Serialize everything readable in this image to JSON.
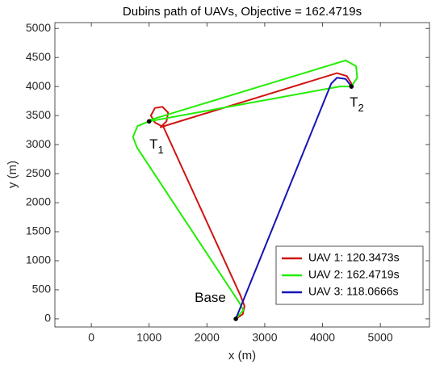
{
  "chart_data": {
    "type": "line",
    "title": "Dubins path of UAVs, Objective = 162.4719s",
    "xlabel": "x (m)",
    "ylabel": "y (m)",
    "xlim": [
      -630,
      5850
    ],
    "ylim": [
      -140,
      5100
    ],
    "xticks": [
      0,
      1000,
      2000,
      3000,
      4000,
      5000
    ],
    "yticks": [
      0,
      500,
      1000,
      1500,
      2000,
      2500,
      3000,
      3500,
      4000,
      4500,
      5000
    ],
    "legend": "lower right",
    "series": [
      {
        "name": "UAV 1: 120.3473s",
        "color": "#d0140e",
        "x": [
          2500,
          2620,
          2650,
          2580,
          1250,
          1100,
          1030,
          1100,
          1230,
          1330,
          1300,
          1200,
          4250,
          4420,
          4500,
          4500
        ],
        "values": [
          0,
          80,
          220,
          400,
          3300,
          3380,
          3500,
          3630,
          3650,
          3550,
          3400,
          3300,
          4230,
          4180,
          4050,
          4000
        ]
      },
      {
        "name": "UAV 2: 162.4719s",
        "color": "#22ee00",
        "x": [
          2500,
          2630,
          2560,
          790,
          720,
          800,
          1000,
          4300,
          4500,
          4600,
          4580,
          4400,
          1000
        ],
        "values": [
          0,
          150,
          280,
          2950,
          3130,
          3320,
          3400,
          4000,
          4000,
          4150,
          4350,
          4450,
          3420
        ]
      },
      {
        "name": "UAV 3: 118.0666s",
        "color": "#1414b4",
        "x": [
          2500,
          4150,
          4250,
          4400,
          4500
        ],
        "values": [
          0,
          4050,
          4150,
          4130,
          4000
        ]
      }
    ],
    "points": {
      "color": "#000000",
      "x": [
        2500,
        1000,
        4500
      ],
      "values": [
        0,
        3400,
        4000
      ]
    },
    "annotations": [
      {
        "text": "T",
        "sub": "1"
      },
      {
        "text": "T",
        "sub": "2"
      },
      {
        "text": "Base"
      }
    ]
  }
}
